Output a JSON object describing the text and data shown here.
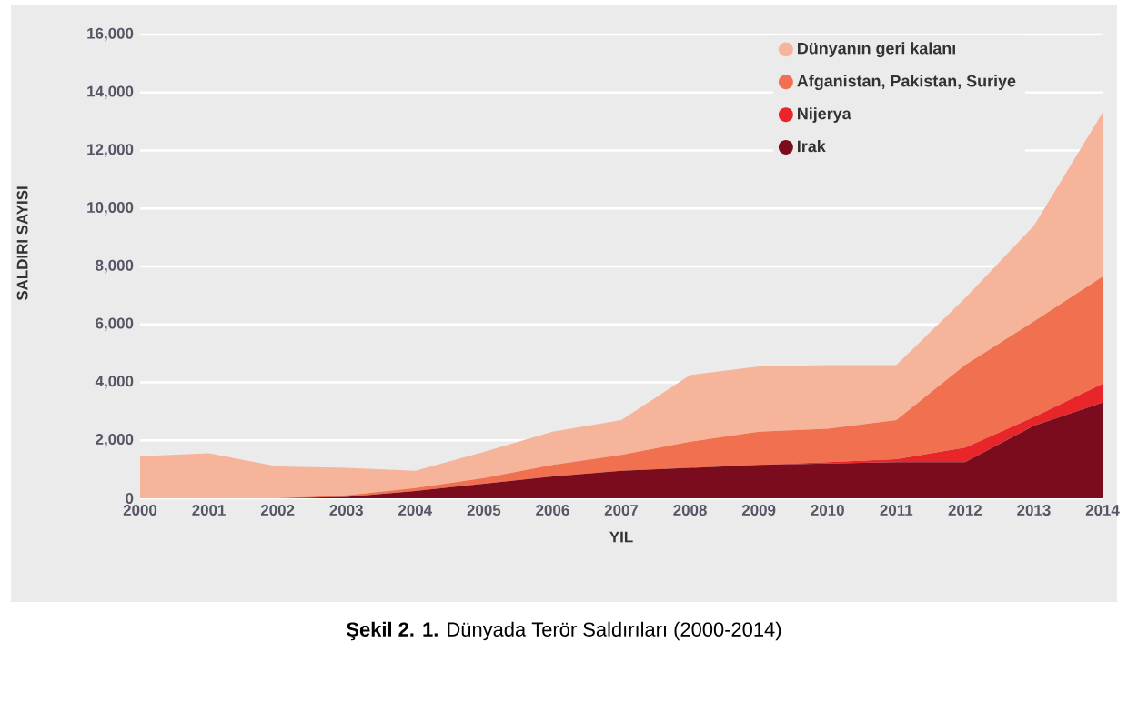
{
  "chart_data": {
    "type": "area",
    "stacked": true,
    "title": "**Şekil 2. 1.** Dünyada Terör Saldırıları (2000-2014)",
    "xlabel": "YIL",
    "ylabel": "SALDIRI SAYISI",
    "x": [
      2000,
      2001,
      2002,
      2003,
      2004,
      2005,
      2006,
      2007,
      2008,
      2009,
      2010,
      2011,
      2012,
      2013,
      2014
    ],
    "series": [
      {
        "name": "Irak",
        "color": "#7a0c1e",
        "values": [
          0,
          0,
          0,
          50,
          250,
          500,
          750,
          950,
          1050,
          1150,
          1200,
          1250,
          1250,
          2500,
          3300
        ]
      },
      {
        "name": "Nijerya",
        "color": "#e8262a",
        "values": [
          0,
          0,
          0,
          0,
          0,
          0,
          0,
          0,
          0,
          0,
          50,
          100,
          500,
          300,
          650
        ]
      },
      {
        "name": "Afganistan, Pakistan, Suriye",
        "color": "#f0704f",
        "values": [
          0,
          0,
          0,
          50,
          100,
          200,
          400,
          550,
          900,
          1150,
          1150,
          1350,
          2850,
          3300,
          3700
        ]
      },
      {
        "name": "Dünyanın geri kalanı",
        "color": "#f6b49a",
        "values": [
          1450,
          1550,
          1100,
          950,
          600,
          900,
          1150,
          1200,
          2300,
          2250,
          2200,
          1900,
          2300,
          3300,
          5650
        ]
      }
    ],
    "xlim": [
      2000,
      2014
    ],
    "ylim": [
      0,
      16000
    ],
    "xticks": [
      2000,
      2001,
      2002,
      2003,
      2004,
      2005,
      2006,
      2007,
      2008,
      2009,
      2010,
      2011,
      2012,
      2013,
      2014
    ],
    "yticks": [
      0,
      {
        "value": 2000,
        "label": "2,000"
      },
      {
        "value": 4000,
        "label": "4,000"
      },
      {
        "value": 6000,
        "label": "6,000"
      },
      {
        "value": 8000,
        "label": "8,000"
      },
      {
        "value": 10000,
        "label": "10,000"
      },
      {
        "value": 12000,
        "label": "12,000"
      },
      {
        "value": 14000,
        "label": "14,000"
      },
      {
        "value": 16000,
        "label": "16,000"
      }
    ],
    "grid": "y",
    "legend": "top right"
  }
}
